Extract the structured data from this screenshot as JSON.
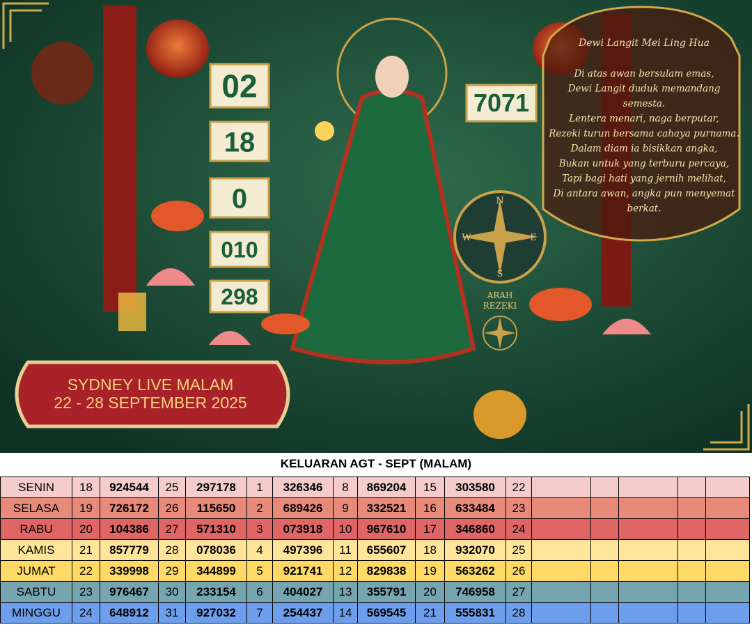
{
  "poster": {
    "numbers": [
      "02",
      "18",
      "0",
      "010",
      "298"
    ],
    "side_number": "7071",
    "poem": {
      "title": "Dewi Langit Mei Ling Hua",
      "lines": [
        "Di atas awan bersulam emas,",
        "Dewi Langit duduk memandang",
        "semesta.",
        "Lentera menari, naga berputar,",
        "Rezeki turun bersama cahaya purnama.",
        "Dalam diam ia bisikkan angka,",
        "Bukan untuk yang terburu percaya,",
        "Tapi bagi hati yang jernih melihat,",
        "Di antara awan, angka pun menyemat",
        "berkat."
      ]
    },
    "compass": [
      "N",
      "E",
      "S",
      "W"
    ],
    "compass_caption": [
      "ARAH",
      "REZEKI"
    ],
    "banner": [
      "SYDNEY LIVE MALAM",
      "22 - 28 SEPTEMBER 2025"
    ]
  },
  "table": {
    "title": "KELUARAN AGT - SEPT (MALAM)",
    "rows": [
      [
        "SENIN",
        "18",
        "924544",
        "25",
        "297178",
        "1",
        "326346",
        "8",
        "869204",
        "15",
        "303580",
        "22"
      ],
      [
        "SELASA",
        "19",
        "726172",
        "26",
        "115650",
        "2",
        "689426",
        "9",
        "332521",
        "16",
        "633484",
        "23"
      ],
      [
        "RABU",
        "20",
        "104386",
        "27",
        "571310",
        "3",
        "073918",
        "10",
        "967610",
        "17",
        "346860",
        "24"
      ],
      [
        "KAMIS",
        "21",
        "857779",
        "28",
        "078036",
        "4",
        "497396",
        "11",
        "655607",
        "18",
        "932070",
        "25"
      ],
      [
        "JUMAT",
        "22",
        "339998",
        "29",
        "344899",
        "5",
        "921741",
        "12",
        "829838",
        "19",
        "563262",
        "26"
      ],
      [
        "SABTU",
        "23",
        "976467",
        "30",
        "233154",
        "6",
        "404027",
        "13",
        "355791",
        "20",
        "746958",
        "27"
      ],
      [
        "MINGGU",
        "24",
        "648912",
        "31",
        "927032",
        "7",
        "254437",
        "14",
        "569545",
        "21",
        "555831",
        "28"
      ]
    ]
  }
}
